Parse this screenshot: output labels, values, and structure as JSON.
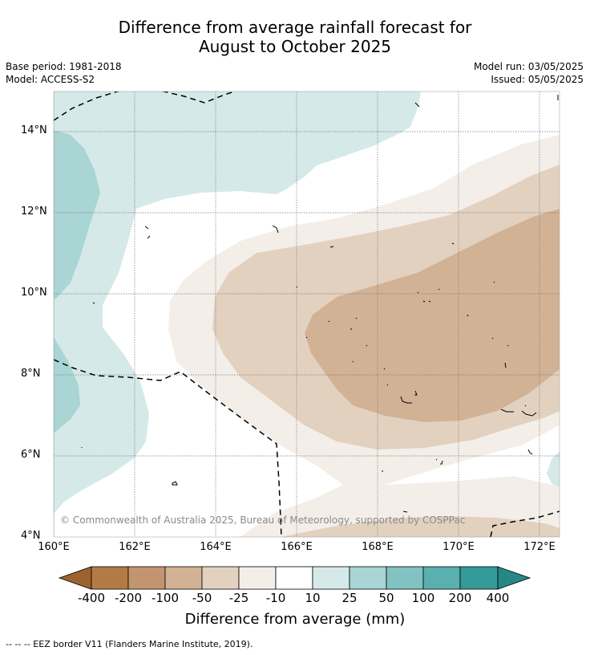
{
  "title": {
    "line1": "Difference from average rainfall forecast for",
    "line2": "August to October 2025"
  },
  "meta": {
    "base_period": "Base period: 1981-2018",
    "model": "Model: ACCESS-S2",
    "model_run": "Model run: 03/05/2025",
    "issued": "Issued: 05/05/2025"
  },
  "map": {
    "lat_ticks": [
      "14°N",
      "12°N",
      "10°N",
      "8°N",
      "6°N",
      "4°N"
    ],
    "lon_ticks": [
      "160°E",
      "162°E",
      "164°E",
      "166°E",
      "168°E",
      "170°E",
      "172°E"
    ],
    "copyright": "© Commonwealth of Australia 2025, Bureau of Meteorology, supported by COSPPac"
  },
  "colorbar": {
    "title": "Difference from average (mm)",
    "labels": [
      "-400",
      "-200",
      "-100",
      "-50",
      "-25",
      "-10",
      "10",
      "25",
      "50",
      "100",
      "200",
      "400"
    ],
    "colors": [
      "#9c6330",
      "#b27a44",
      "#c29570",
      "#d2b295",
      "#e3d1c0",
      "#f4eee9",
      "#ffffff",
      "#d5e9e8",
      "#a9d5d4",
      "#82c2c2",
      "#5aafaf",
      "#349a99",
      "#258885"
    ]
  },
  "footnote": "--  --  -- EEZ border V11 (Flanders Marine Institute, 2019)."
}
